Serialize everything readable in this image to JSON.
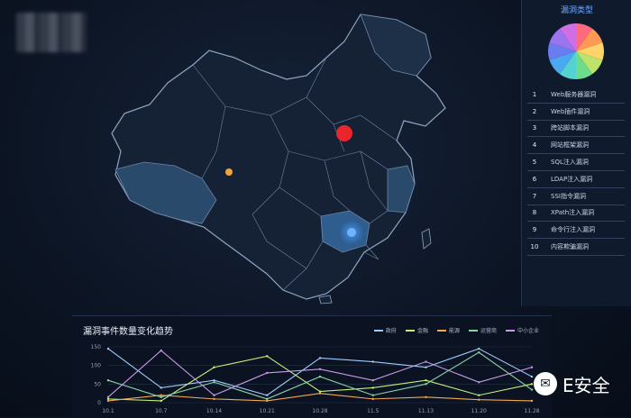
{
  "legend_panel": {
    "title": "漏洞类型",
    "pie_colors": [
      "#ff6b7d",
      "#ff9a55",
      "#ffd56a",
      "#bde36a",
      "#6ddc8c",
      "#54d2d2",
      "#4aa8f0",
      "#6a7df0",
      "#9b74f0",
      "#d06ee6"
    ],
    "items": [
      {
        "num": "1",
        "label": "Web服务器漏洞"
      },
      {
        "num": "2",
        "label": "Web插件漏洞"
      },
      {
        "num": "3",
        "label": "跨站脚本漏洞"
      },
      {
        "num": "4",
        "label": "网站框架漏洞"
      },
      {
        "num": "5",
        "label": "SQL注入漏洞"
      },
      {
        "num": "6",
        "label": "LDAP注入漏洞"
      },
      {
        "num": "7",
        "label": "SSI指令漏洞"
      },
      {
        "num": "8",
        "label": "XPath注入漏洞"
      },
      {
        "num": "9",
        "label": "命令行注入漏洞"
      },
      {
        "num": "10",
        "label": "内容欺骗漏洞"
      }
    ]
  },
  "map": {
    "markers": [
      {
        "name": "north-marker",
        "color": "#e8262b"
      },
      {
        "name": "west-marker",
        "color": "#f2a33a"
      },
      {
        "name": "central-marker",
        "color": "#4c9bff"
      }
    ]
  },
  "watermark": {
    "text": "E安全"
  },
  "chart_data": {
    "type": "line",
    "title": "漏洞事件数量变化趋势",
    "x": [
      "10.1",
      "10.7",
      "10.14",
      "10.21",
      "10.28",
      "11.5",
      "11.13",
      "11.20",
      "11.28"
    ],
    "ylim": [
      0,
      150
    ],
    "yticks": [
      "0",
      "50",
      "100",
      "150"
    ],
    "series": [
      {
        "name": "政府",
        "color": "#9ecbff",
        "values": [
          145,
          40,
          60,
          20,
          120,
          110,
          95,
          145,
          70
        ]
      },
      {
        "name": "金融",
        "color": "#c5ef7a",
        "values": [
          10,
          5,
          95,
          125,
          30,
          40,
          60,
          20,
          50
        ]
      },
      {
        "name": "能源",
        "color": "#f4a94e",
        "values": [
          5,
          20,
          10,
          5,
          25,
          10,
          15,
          8,
          5
        ]
      },
      {
        "name": "运营商",
        "color": "#8cd6a8",
        "values": [
          60,
          15,
          55,
          10,
          70,
          20,
          50,
          135,
          35
        ]
      },
      {
        "name": "中小企业",
        "color": "#c79ce6",
        "values": [
          15,
          140,
          20,
          80,
          90,
          60,
          110,
          55,
          95
        ]
      }
    ]
  }
}
